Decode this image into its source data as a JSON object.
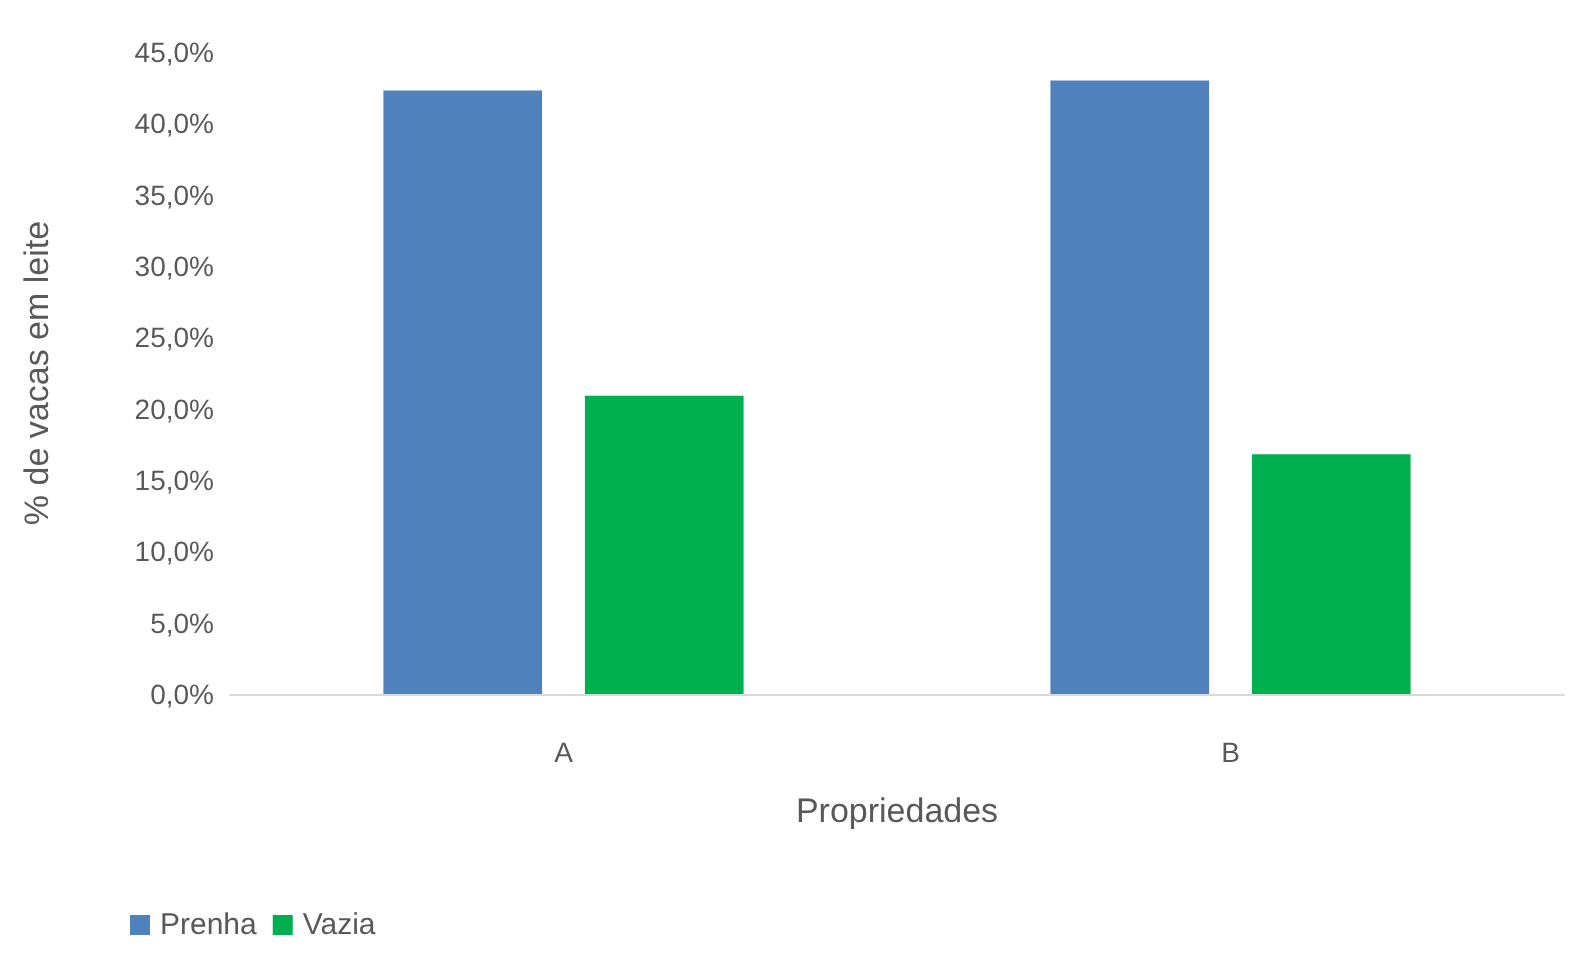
{
  "chart_data": {
    "type": "bar",
    "xlabel": "Propriedades",
    "ylabel": "% de vacas em leite",
    "categories": [
      "A",
      "B"
    ],
    "series": [
      {
        "name": "Prenha",
        "color": "#4f81bd",
        "values": [
          42.3,
          43.0
        ]
      },
      {
        "name": "Vazia",
        "color": "#00b050",
        "values": [
          20.9,
          16.8
        ]
      }
    ],
    "ylim": [
      0,
      45
    ],
    "yticks": [
      {
        "value": 0,
        "label": "0,0%"
      },
      {
        "value": 5,
        "label": "5,0%"
      },
      {
        "value": 10,
        "label": "10,0%"
      },
      {
        "value": 15,
        "label": "15,0%"
      },
      {
        "value": 20,
        "label": "20,0%"
      },
      {
        "value": 25,
        "label": "25,0%"
      },
      {
        "value": 30,
        "label": "30,0%"
      },
      {
        "value": 35,
        "label": "35,0%"
      },
      {
        "value": 40,
        "label": "40,0%"
      },
      {
        "value": 45,
        "label": "45,0%"
      }
    ],
    "grid": false,
    "legend": "bottom left"
  }
}
